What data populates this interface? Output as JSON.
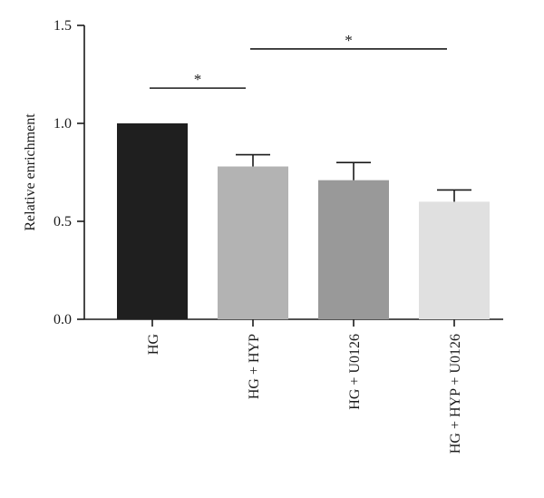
{
  "chart_data": {
    "type": "bar",
    "ylabel": "Relative enrichment",
    "ylim": [
      0,
      1.5
    ],
    "yticks": [
      0.0,
      0.5,
      1.0,
      1.5
    ],
    "ytick_labels": [
      "0.0",
      "0.5",
      "1.0",
      "1.5"
    ],
    "categories": [
      "HG",
      "HG + HYP",
      "HG + U0126",
      "HG + HYP + U0126"
    ],
    "values": [
      1.0,
      0.78,
      0.71,
      0.6
    ],
    "errors": [
      0.0,
      0.06,
      0.09,
      0.06
    ],
    "colors": [
      "#1f1f1f",
      "#b3b3b3",
      "#999999",
      "#e0e0e0"
    ],
    "significance": [
      {
        "from": 0,
        "to": 1,
        "y": 1.18,
        "label": "*"
      },
      {
        "from": 1,
        "to": 3,
        "y": 1.38,
        "label": "*"
      }
    ],
    "grid": false,
    "legend": "none"
  }
}
